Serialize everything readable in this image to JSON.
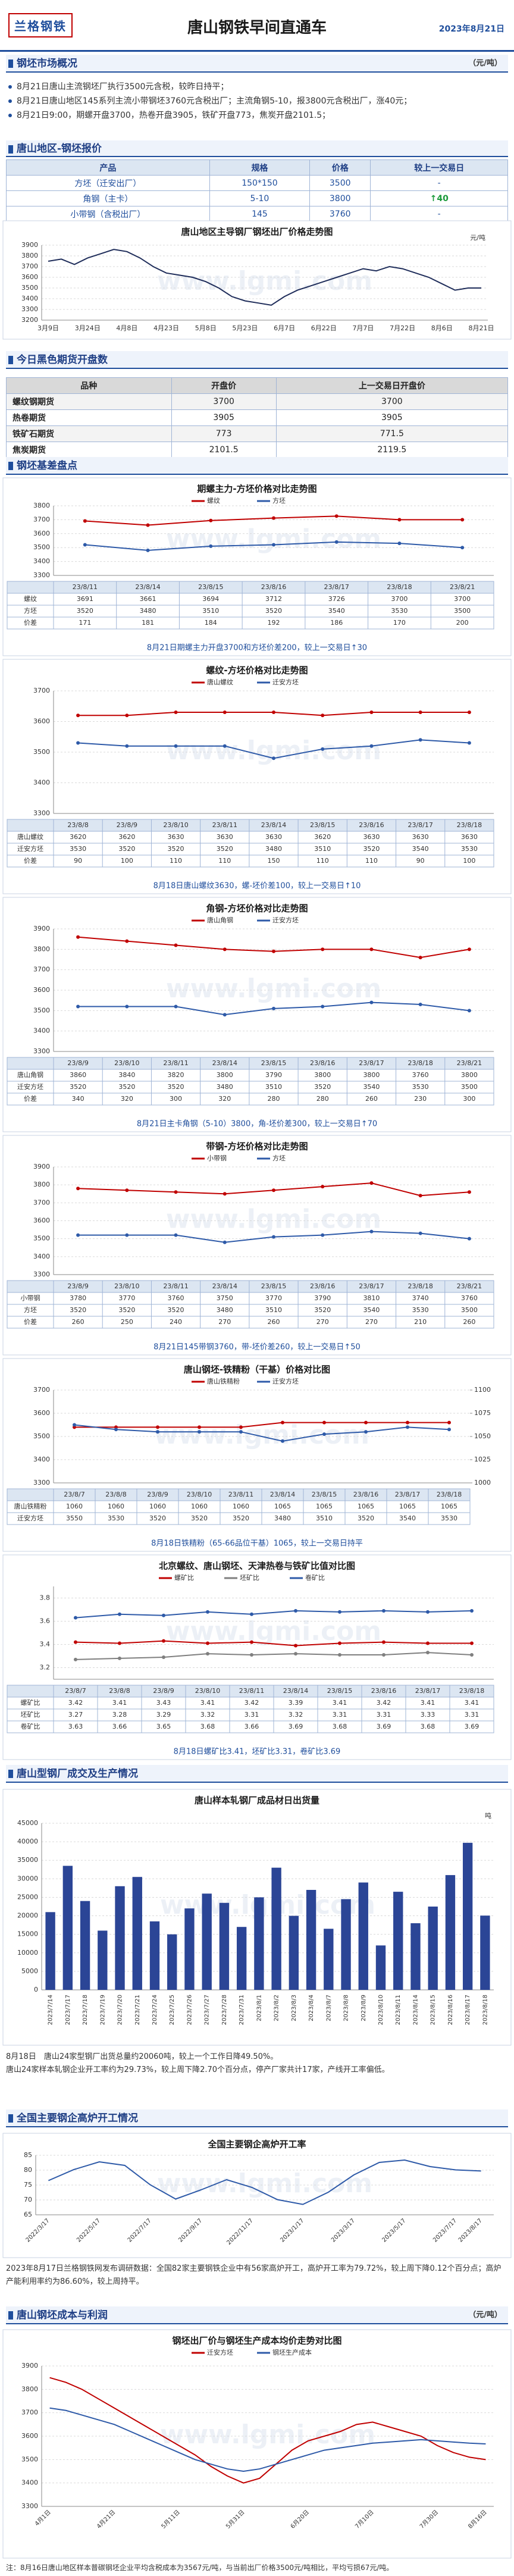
{
  "header": {
    "logo": "兰格钢铁",
    "title": "唐山钢铁早间直通车",
    "date": "2023年8月21日"
  },
  "watermark": "www.lgmi.com",
  "market": {
    "heading": "钢坯市场概况",
    "unit": "（元/吨）",
    "items": [
      "8月21日唐山主流钢坯厂执行3500元含税，较昨日持平；",
      "8月21日唐山地区145系列主流小带钢坯3760元含税出厂；主流角钢5-10，报3800元含税出厂，涨40元；",
      "8月21日9:00，期螺开盘3700，热卷开盘3905，铁矿开盘773，焦炭开盘2101.5；"
    ]
  },
  "quote": {
    "heading": "唐山地区-钢坯报价",
    "columns": [
      "产品",
      "规格",
      "价格",
      "较上一交易日"
    ],
    "rows": [
      [
        "方坯（迁安出厂）",
        "150*150",
        "3500",
        "-"
      ],
      [
        "角钢（主卡）",
        "5-10",
        "3800",
        "↑40"
      ],
      [
        "小带钢（含税出厂）",
        "145",
        "3760",
        "-"
      ]
    ]
  },
  "futures": {
    "heading": "今日黑色期货开盘数",
    "columns": [
      "品种",
      "开盘价",
      "上一交易日开盘价"
    ],
    "rows": [
      [
        "螺纹钢期货",
        "3700",
        "3700"
      ],
      [
        "热卷期货",
        "3905",
        "3905"
      ],
      [
        "铁矿石期货",
        "773",
        "771.5"
      ],
      [
        "焦炭期货",
        "2101.5",
        "2119.5"
      ]
    ]
  },
  "basis": {
    "heading": "钢坯基差盘点"
  },
  "mill": {
    "heading": "唐山型钢厂成交及生产情况",
    "notes": [
      "8月18日　唐山24家型钢厂出货总量约20060吨，较上一个工作日降49.50%。",
      "唐山24家样本轧钢企业开工率约为29.73%，较上周下降2.70个百分点，停产厂家共计17家，产线开工率偏低。"
    ]
  },
  "furnace": {
    "heading": "全国主要钢企高炉开工情况",
    "note": "2023年8月17日兰格钢铁网发布调研数据：全国82家主要钢铁企业中有56家高炉开工，高炉开工率为79.72%，较上周下降0.12个百分点；高炉产能利用率约为86.60%，较上周持平。"
  },
  "cost": {
    "heading": "唐山钢坯成本与利润",
    "unit": "（元/吨）",
    "note": "注：8月16日唐山地区样本普碳钢坯企业平均含税成本为3567元/吨，与当前出厂价格3500元/吨相比，平均亏损67元/吨。"
  },
  "chart_data": [
    {
      "type": "line",
      "title": "唐山地区主导钢厂钢坯出厂价格走势图",
      "unit": "元/吨",
      "color": "#1f2d5a",
      "categories": [
        "3月9日",
        null,
        null,
        "3月24日",
        null,
        null,
        "4月8日",
        null,
        null,
        "4月23日",
        null,
        null,
        "5月8日",
        null,
        null,
        "5月23日",
        null,
        null,
        "6月7日",
        null,
        null,
        "6月22日",
        null,
        null,
        "7月7日",
        null,
        null,
        "7月22日",
        null,
        null,
        "8月6日",
        null,
        null,
        "8月21日"
      ],
      "values": [
        3750,
        3770,
        3720,
        3780,
        3820,
        3860,
        3840,
        3780,
        3700,
        3640,
        3620,
        3600,
        3560,
        3500,
        3420,
        3380,
        3360,
        3340,
        3420,
        3480,
        3520,
        3560,
        3600,
        3640,
        3680,
        3660,
        3700,
        3680,
        3640,
        3600,
        3540,
        3480,
        3500,
        3500
      ],
      "ylim": [
        3200,
        3900
      ],
      "yticks": [
        3200,
        3300,
        3400,
        3500,
        3600,
        3700,
        3800,
        3900
      ],
      "grid": true
    },
    {
      "type": "line",
      "title": "期螺主力-方坯价格对比走势图",
      "categories": [
        "23/8/11",
        "23/8/14",
        "23/8/15",
        "23/8/16",
        "23/8/17",
        "23/8/18",
        "23/8/21"
      ],
      "series": [
        {
          "name": "螺纹",
          "color": "#c00000",
          "values": [
            3691,
            3661,
            3694,
            3712,
            3726,
            3700,
            3700
          ]
        },
        {
          "name": "方坯",
          "color": "#2e5aa8",
          "values": [
            3520,
            3480,
            3510,
            3520,
            3540,
            3530,
            3500
          ]
        }
      ],
      "spread": {
        "name": "价差",
        "values": [
          171,
          181,
          184,
          192,
          186,
          170,
          200
        ]
      },
      "ylim": [
        3300,
        3800
      ],
      "yticks": [
        3300,
        3400,
        3500,
        3600,
        3700,
        3800
      ],
      "grid": true,
      "caption": "8月21日期螺主力开盘3700和方坯价差200，较上一交易日↑30"
    },
    {
      "type": "line",
      "title": "螺纹-方坯价格对比走势图",
      "categories": [
        "23/8/8",
        "23/8/9",
        "23/8/10",
        "23/8/11",
        "23/8/14",
        "23/8/15",
        "23/8/16",
        "23/8/17",
        "23/8/18"
      ],
      "series": [
        {
          "name": "唐山螺纹",
          "color": "#c00000",
          "values": [
            3620,
            3620,
            3630,
            3630,
            3630,
            3620,
            3630,
            3630,
            3630
          ]
        },
        {
          "name": "迁安方坯",
          "color": "#2e5aa8",
          "values": [
            3530,
            3520,
            3520,
            3520,
            3480,
            3510,
            3520,
            3540,
            3530
          ]
        }
      ],
      "spread": {
        "name": "价差",
        "values": [
          90,
          100,
          110,
          110,
          150,
          110,
          110,
          90,
          100
        ]
      },
      "ylim": [
        3300,
        3700
      ],
      "yticks": [
        3300,
        3400,
        3500,
        3600,
        3700
      ],
      "grid": true,
      "caption": "8月18日唐山螺纹3630，螺-坯价差100，较上一交易日↑10"
    },
    {
      "type": "line",
      "title": "角钢-方坯价格对比走势图",
      "categories": [
        "23/8/9",
        "23/8/10",
        "23/8/11",
        "23/8/14",
        "23/8/15",
        "23/8/16",
        "23/8/17",
        "23/8/18",
        "23/8/21"
      ],
      "series": [
        {
          "name": "唐山角钢",
          "color": "#c00000",
          "values": [
            3860,
            3840,
            3820,
            3800,
            3790,
            3800,
            3800,
            3760,
            3800
          ]
        },
        {
          "name": "迁安方坯",
          "color": "#2e5aa8",
          "values": [
            3520,
            3520,
            3520,
            3480,
            3510,
            3520,
            3540,
            3530,
            3500
          ]
        }
      ],
      "spread": {
        "name": "价差",
        "values": [
          340,
          320,
          300,
          320,
          280,
          280,
          260,
          230,
          300
        ]
      },
      "ylim": [
        3300,
        3900
      ],
      "yticks": [
        3300,
        3400,
        3500,
        3600,
        3700,
        3800,
        3900
      ],
      "grid": true,
      "caption": "8月21日主卡角钢（5-10）3800，角-坯价差300，较上一交易日↑70"
    },
    {
      "type": "line",
      "title": "带钢-方坯价格对比走势图",
      "categories": [
        "23/8/9",
        "23/8/10",
        "23/8/11",
        "23/8/14",
        "23/8/15",
        "23/8/16",
        "23/8/17",
        "23/8/18",
        "23/8/21"
      ],
      "series": [
        {
          "name": "小带钢",
          "color": "#c00000",
          "values": [
            3780,
            3770,
            3760,
            3750,
            3770,
            3790,
            3810,
            3740,
            3760
          ]
        },
        {
          "name": "方坯",
          "color": "#2e5aa8",
          "values": [
            3520,
            3520,
            3520,
            3480,
            3510,
            3520,
            3540,
            3530,
            3500
          ]
        }
      ],
      "spread": {
        "name": "价差",
        "values": [
          260,
          250,
          240,
          270,
          260,
          270,
          270,
          210,
          260
        ]
      },
      "ylim": [
        3300,
        3900
      ],
      "yticks": [
        3300,
        3400,
        3500,
        3600,
        3700,
        3800,
        3900
      ],
      "grid": true,
      "caption": "8月21日145带钢3760，带-坯价差260，较上一交易日↑50"
    },
    {
      "type": "line",
      "title": "唐山钢坯-铁精粉（干基）价格对比图",
      "categories": [
        "23/8/7",
        "23/8/8",
        "23/8/9",
        "23/8/10",
        "23/8/11",
        "23/8/14",
        "23/8/15",
        "23/8/16",
        "23/8/17",
        "23/8/18"
      ],
      "series": [
        {
          "name": "唐山铁精粉",
          "color": "#c00000",
          "axis": "y2",
          "values": [
            1060,
            1060,
            1060,
            1060,
            1060,
            1065,
            1065,
            1065,
            1065,
            1065
          ]
        },
        {
          "name": "迁安方坯",
          "color": "#2e5aa8",
          "values": [
            3550,
            3530,
            3520,
            3520,
            3520,
            3480,
            3510,
            3520,
            3540,
            3530
          ]
        }
      ],
      "ylim": [
        3300,
        3700
      ],
      "yticks": [
        3300,
        3400,
        3500,
        3600,
        3700
      ],
      "y2lim": [
        1000,
        1100
      ],
      "y2ticks": [
        1000,
        1025,
        1050,
        1075,
        1100
      ],
      "grid": true,
      "caption": "8月18日铁精粉（65-66品位干基）1065，较上一交易日持平"
    },
    {
      "type": "line",
      "title": "北京螺纹、唐山钢坯、天津热卷与铁矿比值对比图",
      "categories": [
        "23/8/7",
        "23/8/8",
        "23/8/9",
        "23/8/10",
        "23/8/11",
        "23/8/14",
        "23/8/15",
        "23/8/16",
        "23/8/17",
        "23/8/18"
      ],
      "series": [
        {
          "name": "螺矿比",
          "color": "#c00000",
          "values": [
            3.42,
            3.41,
            3.43,
            3.41,
            3.42,
            3.39,
            3.41,
            3.42,
            3.41,
            3.41
          ]
        },
        {
          "name": "坯矿比",
          "color": "#7f7f7f",
          "values": [
            3.27,
            3.28,
            3.29,
            3.32,
            3.31,
            3.32,
            3.31,
            3.31,
            3.33,
            3.31
          ]
        },
        {
          "name": "卷矿比",
          "color": "#2e5aa8",
          "values": [
            3.63,
            3.66,
            3.65,
            3.68,
            3.66,
            3.69,
            3.68,
            3.69,
            3.68,
            3.69
          ]
        }
      ],
      "ylim": [
        3.1,
        3.9
      ],
      "yticks": [
        3.2,
        3.4,
        3.6,
        3.8
      ],
      "grid": true,
      "caption": "8月18日螺矿比3.41，坯矿比3.31，卷矿比3.69"
    },
    {
      "type": "bar",
      "title": "唐山样本轧钢厂成品材日出货量",
      "unit": "吨",
      "color": "#2b4596",
      "categories": [
        "2023/7/14",
        "2023/7/17",
        "2023/7/18",
        "2023/7/19",
        "2023/7/20",
        "2023/7/21",
        "2023/7/24",
        "2023/7/25",
        "2023/7/26",
        "2023/7/27",
        "2023/7/28",
        "2023/7/31",
        "2023/8/1",
        "2023/8/2",
        "2023/8/3",
        "2023/8/4",
        "2023/8/7",
        "2023/8/8",
        "2023/8/9",
        "2023/8/10",
        "2023/8/11",
        "2023/8/14",
        "2023/8/15",
        "2023/8/16",
        "2023/8/17",
        "2023/8/18"
      ],
      "values": [
        21000,
        33500,
        24000,
        16000,
        28000,
        30500,
        18500,
        15000,
        22000,
        26000,
        23500,
        17000,
        25000,
        33000,
        20000,
        27000,
        16500,
        24500,
        29000,
        12000,
        26500,
        18000,
        22500,
        31000,
        39720,
        20060
      ],
      "ylim": [
        0,
        45000
      ],
      "yticks": [
        0,
        5000,
        10000,
        15000,
        20000,
        25000,
        30000,
        35000,
        40000,
        45000
      ],
      "grid": true
    },
    {
      "type": "line",
      "title": "全国主要钢企高炉开工率",
      "color": "#2e5aa8",
      "categories": [
        "2022/3/17",
        null,
        "2022/5/17",
        null,
        "2022/7/17",
        null,
        "2022/9/17",
        null,
        "2022/11/17",
        null,
        "2023/1/17",
        null,
        "2023/3/17",
        null,
        "2023/5/17",
        null,
        "2023/7/17",
        "2023/8/17"
      ],
      "values": [
        76.5,
        80.2,
        82.8,
        81.6,
        75.1,
        70.3,
        73.4,
        76.8,
        74.2,
        70.1,
        68.5,
        72.6,
        78.4,
        82.6,
        83.4,
        81.2,
        80.1,
        79.72
      ],
      "ylim": [
        65,
        85
      ],
      "yticks": [
        65,
        70,
        75,
        80,
        85
      ],
      "grid": true
    },
    {
      "type": "line",
      "title": "钢坯出厂价与钢坯生产成本均价走势对比图",
      "categories": [
        "4月1日",
        null,
        null,
        null,
        "4月21日",
        null,
        null,
        null,
        "5月11日",
        null,
        null,
        null,
        "5月31日",
        null,
        null,
        null,
        "6月20日",
        null,
        null,
        null,
        "7月10日",
        null,
        null,
        null,
        "7月30日",
        null,
        null,
        "8月16日"
      ],
      "series": [
        {
          "name": "迁安方坯",
          "color": "#c00000",
          "values": [
            3850,
            3830,
            3800,
            3760,
            3720,
            3680,
            3640,
            3600,
            3560,
            3520,
            3470,
            3430,
            3400,
            3420,
            3480,
            3540,
            3580,
            3600,
            3620,
            3650,
            3660,
            3640,
            3620,
            3600,
            3560,
            3530,
            3510,
            3500
          ]
        },
        {
          "name": "钢坯生产成本",
          "color": "#2e5aa8",
          "values": [
            3720,
            3710,
            3690,
            3670,
            3650,
            3620,
            3590,
            3560,
            3530,
            3500,
            3480,
            3460,
            3450,
            3460,
            3480,
            3500,
            3520,
            3540,
            3550,
            3560,
            3570,
            3575,
            3580,
            3585,
            3580,
            3575,
            3570,
            3567
          ]
        }
      ],
      "ylim": [
        3300,
        3900
      ],
      "yticks": [
        3300,
        3400,
        3500,
        3600,
        3700,
        3800,
        3900
      ],
      "grid": true
    }
  ]
}
